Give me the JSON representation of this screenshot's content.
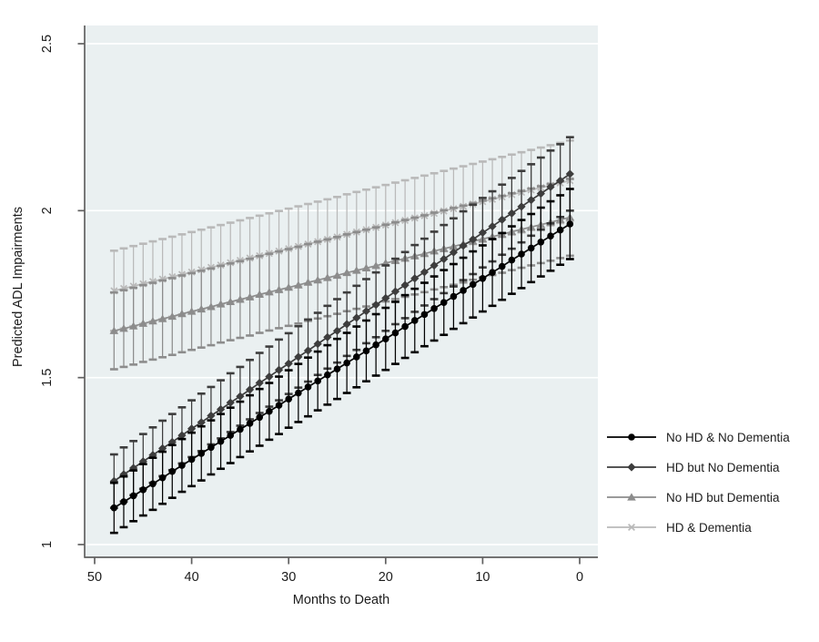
{
  "chart_data": {
    "type": "line",
    "title": "",
    "xlabel": "Months to Death",
    "ylabel": "Predicted ADL Impairments",
    "x_axis": {
      "ticks": [
        50,
        40,
        30,
        20,
        10,
        0
      ],
      "reversed": true,
      "range": [
        53,
        -2
      ]
    },
    "y_axis": {
      "ticks": [
        1,
        1.5,
        2,
        2.5
      ],
      "range": [
        0.96,
        2.55
      ]
    },
    "grid": "horizontal-white-on-bluishgray",
    "legend_position": "right",
    "x": [
      48,
      47,
      46,
      45,
      44,
      43,
      42,
      41,
      40,
      39,
      38,
      37,
      36,
      35,
      34,
      33,
      32,
      31,
      30,
      29,
      28,
      27,
      26,
      25,
      24,
      23,
      22,
      21,
      20,
      19,
      18,
      17,
      16,
      15,
      14,
      13,
      12,
      11,
      10,
      9,
      8,
      7,
      6,
      5,
      4,
      3,
      2,
      1
    ],
    "series": [
      {
        "name": "No HD & No Dementia",
        "marker": "circle",
        "color": "#000000",
        "values": [
          1.11,
          1.128,
          1.146,
          1.164,
          1.182,
          1.2,
          1.219,
          1.237,
          1.255,
          1.273,
          1.291,
          1.309,
          1.327,
          1.345,
          1.363,
          1.381,
          1.399,
          1.417,
          1.436,
          1.454,
          1.472,
          1.49,
          1.508,
          1.526,
          1.544,
          1.562,
          1.58,
          1.598,
          1.616,
          1.634,
          1.653,
          1.671,
          1.689,
          1.707,
          1.725,
          1.743,
          1.761,
          1.779,
          1.797,
          1.815,
          1.833,
          1.852,
          1.87,
          1.888,
          1.906,
          1.924,
          1.942,
          1.96
        ],
        "ci_halfwidth": [
          0.075,
          0.076,
          0.076,
          0.077,
          0.078,
          0.078,
          0.079,
          0.079,
          0.08,
          0.081,
          0.081,
          0.082,
          0.083,
          0.083,
          0.084,
          0.085,
          0.085,
          0.086,
          0.086,
          0.087,
          0.088,
          0.088,
          0.089,
          0.09,
          0.09,
          0.091,
          0.091,
          0.092,
          0.093,
          0.093,
          0.094,
          0.095,
          0.095,
          0.096,
          0.097,
          0.097,
          0.098,
          0.099,
          0.099,
          0.1,
          0.1,
          0.101,
          0.102,
          0.102,
          0.103,
          0.104,
          0.104,
          0.105
        ]
      },
      {
        "name": "HD but No Dementia",
        "marker": "diamond",
        "color": "#3d3d3d",
        "values": [
          1.19,
          1.21,
          1.229,
          1.249,
          1.268,
          1.288,
          1.307,
          1.327,
          1.347,
          1.366,
          1.386,
          1.405,
          1.425,
          1.444,
          1.464,
          1.484,
          1.503,
          1.523,
          1.542,
          1.562,
          1.581,
          1.601,
          1.621,
          1.64,
          1.66,
          1.679,
          1.699,
          1.718,
          1.738,
          1.758,
          1.777,
          1.797,
          1.816,
          1.836,
          1.855,
          1.875,
          1.895,
          1.914,
          1.934,
          1.953,
          1.973,
          1.992,
          2.012,
          2.032,
          2.051,
          2.071,
          2.09,
          2.11
        ],
        "ci_halfwidth": [
          0.08,
          0.081,
          0.081,
          0.082,
          0.083,
          0.083,
          0.084,
          0.084,
          0.085,
          0.086,
          0.086,
          0.087,
          0.088,
          0.088,
          0.089,
          0.09,
          0.09,
          0.091,
          0.091,
          0.092,
          0.093,
          0.093,
          0.094,
          0.095,
          0.095,
          0.096,
          0.096,
          0.097,
          0.098,
          0.098,
          0.099,
          0.1,
          0.1,
          0.101,
          0.102,
          0.102,
          0.103,
          0.104,
          0.104,
          0.105,
          0.105,
          0.106,
          0.107,
          0.107,
          0.108,
          0.109,
          0.109,
          0.11
        ]
      },
      {
        "name": "No HD but Dementia",
        "marker": "triangle",
        "color": "#8c8c8c",
        "values": [
          1.64,
          1.647,
          1.654,
          1.662,
          1.669,
          1.676,
          1.683,
          1.691,
          1.698,
          1.705,
          1.712,
          1.72,
          1.727,
          1.734,
          1.741,
          1.749,
          1.756,
          1.763,
          1.77,
          1.777,
          1.785,
          1.792,
          1.799,
          1.806,
          1.814,
          1.821,
          1.828,
          1.835,
          1.843,
          1.85,
          1.857,
          1.864,
          1.871,
          1.879,
          1.886,
          1.893,
          1.9,
          1.908,
          1.915,
          1.922,
          1.929,
          1.937,
          1.944,
          1.951,
          1.958,
          1.965,
          1.973,
          1.98
        ],
        "ci_halfwidth": 0.115
      },
      {
        "name": "HD & Dementia",
        "marker": "x",
        "color": "#b9b9b9",
        "values": [
          1.76,
          1.767,
          1.774,
          1.781,
          1.788,
          1.795,
          1.802,
          1.809,
          1.816,
          1.823,
          1.83,
          1.837,
          1.844,
          1.851,
          1.858,
          1.865,
          1.872,
          1.879,
          1.886,
          1.893,
          1.9,
          1.907,
          1.914,
          1.921,
          1.929,
          1.936,
          1.943,
          1.95,
          1.957,
          1.964,
          1.971,
          1.978,
          1.985,
          1.992,
          1.999,
          2.006,
          2.013,
          2.02,
          2.027,
          2.034,
          2.041,
          2.048,
          2.055,
          2.062,
          2.069,
          2.076,
          2.083,
          2.09
        ],
        "ci_halfwidth": 0.12
      }
    ],
    "colors": {
      "plot_bg": "#eaf0f1",
      "grid": "#ffffff",
      "axis": "#606060",
      "text": "#1c1c1c"
    }
  }
}
